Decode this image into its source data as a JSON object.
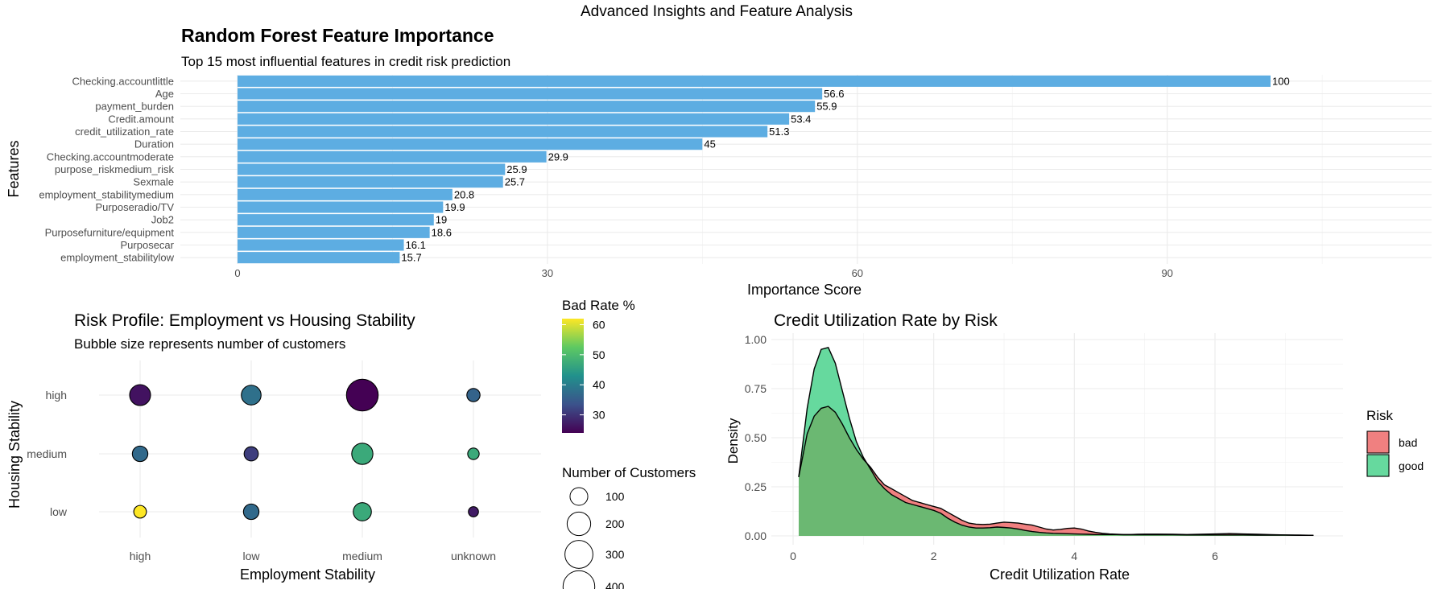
{
  "page_title": "Advanced Insights and Feature Analysis",
  "colors": {
    "bar_fill": "#5dade2",
    "bad": "#f08080",
    "good": "#66d99e",
    "good_overlap": "#6bb872",
    "viridis": [
      "#440154",
      "#3b528b",
      "#21918c",
      "#5ec962",
      "#fde725"
    ]
  },
  "chart_data": [
    {
      "type": "bar",
      "orientation": "horizontal",
      "title": "Random Forest Feature Importance",
      "subtitle": "Top 15 most influential features in credit risk prediction",
      "xlabel": "Importance Score",
      "ylabel": "Features",
      "xlim": [
        0,
        115
      ],
      "xticks": [
        0,
        30,
        60,
        90
      ],
      "categories": [
        "Checking.accountlittle",
        "Age",
        "payment_burden",
        "Credit.amount",
        "credit_utilization_rate",
        "Duration",
        "Checking.accountmoderate",
        "purpose_riskmedium_risk",
        "Sexmale",
        "employment_stabilitymedium",
        "Purposeradio/TV",
        "Job2",
        "Purposefurniture/equipment",
        "Purposecar",
        "employment_stabilitylow"
      ],
      "values": [
        100,
        56.6,
        55.9,
        53.4,
        51.3,
        45,
        29.9,
        25.9,
        25.7,
        20.8,
        19.9,
        19,
        18.6,
        16.1,
        15.7
      ],
      "labels": [
        "100",
        "56.6",
        "55.9",
        "53.4",
        "51.3",
        "45",
        "29.9",
        "25.9",
        "25.7",
        "20.8",
        "19.9",
        "19",
        "18.6",
        "16.1",
        "15.7"
      ],
      "grid": true
    },
    {
      "type": "scatter",
      "title": "Risk Profile: Employment vs Housing Stability",
      "subtitle": "Bubble size represents number of customers",
      "xlabel": "Employment Stability",
      "ylabel": "Housing Stability",
      "x_categories": [
        "high",
        "low",
        "medium",
        "unknown"
      ],
      "y_categories": [
        "low",
        "medium",
        "high"
      ],
      "points": [
        {
          "x": "high",
          "y": "high",
          "customers": 150,
          "bad_rate": 26
        },
        {
          "x": "low",
          "y": "high",
          "customers": 130,
          "bad_rate": 38
        },
        {
          "x": "medium",
          "y": "high",
          "customers": 400,
          "bad_rate": 24
        },
        {
          "x": "unknown",
          "y": "high",
          "customers": 45,
          "bad_rate": 36
        },
        {
          "x": "high",
          "y": "medium",
          "customers": 70,
          "bad_rate": 37
        },
        {
          "x": "low",
          "y": "medium",
          "customers": 55,
          "bad_rate": 31
        },
        {
          "x": "medium",
          "y": "medium",
          "customers": 155,
          "bad_rate": 47
        },
        {
          "x": "unknown",
          "y": "medium",
          "customers": 30,
          "bad_rate": 47
        },
        {
          "x": "high",
          "y": "low",
          "customers": 40,
          "bad_rate": 62
        },
        {
          "x": "low",
          "y": "low",
          "customers": 70,
          "bad_rate": 37
        },
        {
          "x": "medium",
          "y": "low",
          "customers": 105,
          "bad_rate": 47
        },
        {
          "x": "unknown",
          "y": "low",
          "customers": 20,
          "bad_rate": 27
        }
      ],
      "color_legend": {
        "title": "Bad Rate %",
        "ticks": [
          30,
          40,
          50,
          60
        ],
        "range": [
          24,
          62
        ]
      },
      "size_legend": {
        "title": "Number of Customers",
        "values": [
          100,
          200,
          300,
          400
        ],
        "labels": [
          "100",
          "200",
          "300",
          "400"
        ]
      },
      "grid": true
    },
    {
      "type": "area",
      "title": "Credit Utilization Rate by Risk",
      "xlabel": "Credit Utilization Rate",
      "ylabel": "Density",
      "xlim": [
        0,
        7.5
      ],
      "ylim": [
        0,
        1.05
      ],
      "xticks": [
        0,
        2,
        4,
        6
      ],
      "yticks": [
        0,
        0.25,
        0.5,
        0.75,
        1.0
      ],
      "ytick_labels": [
        "0.00",
        "0.25",
        "0.50",
        "0.75",
        "1.00"
      ],
      "legend": {
        "title": "Risk",
        "position": "right"
      },
      "series": [
        {
          "name": "bad",
          "x": [
            0.08,
            0.2,
            0.3,
            0.4,
            0.5,
            0.6,
            0.7,
            0.8,
            0.9,
            1.0,
            1.1,
            1.2,
            1.3,
            1.4,
            1.5,
            1.6,
            1.7,
            1.8,
            1.9,
            2.0,
            2.1,
            2.2,
            2.3,
            2.4,
            2.5,
            2.6,
            2.7,
            2.8,
            2.9,
            3.0,
            3.1,
            3.2,
            3.3,
            3.4,
            3.5,
            3.6,
            3.7,
            3.8,
            3.9,
            4.0,
            4.1,
            4.2,
            4.3,
            4.4,
            4.5,
            4.6,
            4.7,
            4.8,
            4.9,
            5.0,
            5.2,
            5.4,
            5.6,
            5.8,
            6.0,
            6.2,
            6.4,
            6.6,
            6.8,
            7.0,
            7.2,
            7.4
          ],
          "y": [
            0.3,
            0.52,
            0.61,
            0.65,
            0.66,
            0.63,
            0.57,
            0.5,
            0.44,
            0.39,
            0.35,
            0.3,
            0.26,
            0.24,
            0.22,
            0.2,
            0.18,
            0.17,
            0.16,
            0.15,
            0.14,
            0.12,
            0.1,
            0.08,
            0.065,
            0.06,
            0.058,
            0.06,
            0.065,
            0.07,
            0.068,
            0.065,
            0.06,
            0.055,
            0.045,
            0.035,
            0.03,
            0.033,
            0.038,
            0.04,
            0.035,
            0.025,
            0.018,
            0.013,
            0.01,
            0.008,
            0.007,
            0.007,
            0.008,
            0.009,
            0.009,
            0.008,
            0.007,
            0.008,
            0.01,
            0.012,
            0.01,
            0.008,
            0.006,
            0.005,
            0.004,
            0.003
          ]
        },
        {
          "name": "good",
          "x": [
            0.08,
            0.2,
            0.3,
            0.4,
            0.5,
            0.6,
            0.7,
            0.8,
            0.9,
            1.0,
            1.1,
            1.2,
            1.3,
            1.4,
            1.5,
            1.6,
            1.7,
            1.8,
            1.9,
            2.0,
            2.1,
            2.2,
            2.3,
            2.4,
            2.5,
            2.6,
            2.7,
            2.8,
            2.9,
            3.0,
            3.1,
            3.2,
            3.3,
            3.4,
            3.5,
            3.6,
            3.7,
            3.8,
            3.9,
            4.0,
            4.1,
            4.2,
            4.3,
            4.4,
            4.5,
            4.6,
            4.7,
            4.8,
            4.9,
            5.0,
            5.2,
            5.4,
            5.6,
            5.8,
            6.0,
            6.2,
            6.4,
            6.6,
            6.8,
            7.0,
            7.2,
            7.4
          ],
          "y": [
            0.3,
            0.65,
            0.85,
            0.95,
            0.96,
            0.88,
            0.74,
            0.6,
            0.48,
            0.4,
            0.34,
            0.28,
            0.24,
            0.21,
            0.19,
            0.17,
            0.16,
            0.15,
            0.14,
            0.13,
            0.115,
            0.09,
            0.07,
            0.055,
            0.045,
            0.04,
            0.04,
            0.042,
            0.045,
            0.043,
            0.04,
            0.035,
            0.028,
            0.022,
            0.018,
            0.015,
            0.013,
            0.012,
            0.011,
            0.01,
            0.009,
            0.008,
            0.007,
            0.007,
            0.007,
            0.007,
            0.006,
            0.006,
            0.006,
            0.006,
            0.006,
            0.006,
            0.005,
            0.005,
            0.005,
            0.005,
            0.005,
            0.004,
            0.004,
            0.004,
            0.003,
            0.003
          ]
        }
      ],
      "grid": true
    }
  ]
}
